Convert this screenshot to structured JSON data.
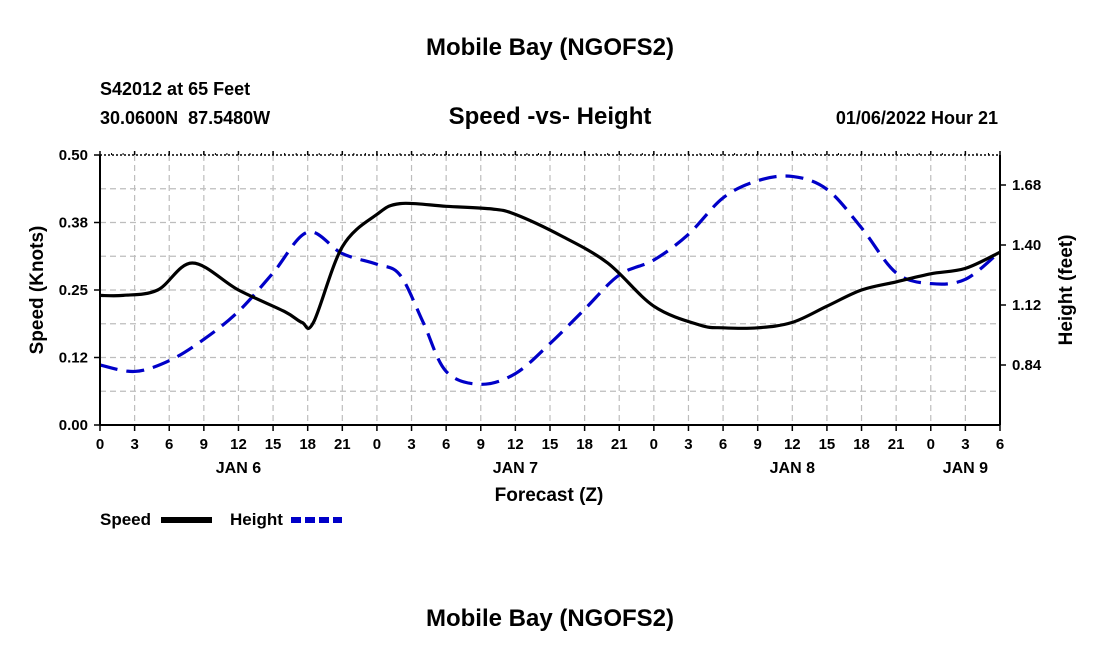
{
  "page": {
    "title": "Mobile Bay (NGOFS2)",
    "bottom_title": "Mobile Bay (NGOFS2)"
  },
  "header": {
    "station_line": "S42012 at 65 Feet",
    "coords": "30.0600N  87.5480W",
    "plot_title": "Speed -vs- Height",
    "timestamp": "01/06/2022 Hour 21"
  },
  "legend": {
    "speed_label": "Speed",
    "height_label": "Height"
  },
  "chart_data": {
    "type": "line",
    "xlabel": "Forecast (Z)",
    "ylabel_left": "Speed (Knots)",
    "ylabel_right": "Height (feet)",
    "x_unit": "hours",
    "x_range": [
      0,
      78
    ],
    "x_ticks": [
      "0",
      "3",
      "6",
      "9",
      "12",
      "15",
      "18",
      "21",
      "0",
      "3",
      "6",
      "9",
      "12",
      "15",
      "18",
      "21",
      "0",
      "3",
      "6",
      "9",
      "12",
      "15",
      "18",
      "21",
      "0",
      "3",
      "6"
    ],
    "day_labels": [
      {
        "label": "JAN 6",
        "hour": 12
      },
      {
        "label": "JAN 7",
        "hour": 36
      },
      {
        "label": "JAN 8",
        "hour": 60
      },
      {
        "label": "JAN 9",
        "hour": 75
      }
    ],
    "ylim_left": [
      0,
      0.5
    ],
    "yticks_left": [
      "0.00",
      "0.12",
      "0.25",
      "0.38",
      "0.50"
    ],
    "ylim_right": [
      0.56,
      1.82
    ],
    "yticks_right": [
      "0.84",
      "1.12",
      "1.40",
      "1.68"
    ],
    "grid": true,
    "legend_position": "bottom-left",
    "series": [
      {
        "name": "Speed",
        "axis": "left",
        "color": "#000000",
        "style": "solid",
        "x": [
          0,
          2,
          5,
          8,
          12,
          16,
          17.5,
          18.5,
          21,
          24,
          26,
          30,
          34,
          36,
          40,
          44,
          48,
          52,
          54,
          57,
          60,
          63,
          66,
          69,
          72,
          75,
          78
        ],
        "y": [
          0.24,
          0.24,
          0.25,
          0.3,
          0.25,
          0.21,
          0.19,
          0.19,
          0.33,
          0.39,
          0.41,
          0.405,
          0.4,
          0.39,
          0.35,
          0.3,
          0.22,
          0.185,
          0.18,
          0.18,
          0.19,
          0.22,
          0.25,
          0.265,
          0.28,
          0.29,
          0.32
        ]
      },
      {
        "name": "Height",
        "axis": "right",
        "color": "#0000c8",
        "style": "dashed",
        "x": [
          0,
          3,
          6,
          9,
          12,
          15,
          18,
          21,
          24,
          26,
          28,
          30,
          33,
          36,
          39,
          42,
          45,
          48,
          51,
          54,
          57,
          60,
          63,
          66,
          69,
          72,
          75,
          78
        ],
        "y": [
          0.84,
          0.81,
          0.86,
          0.96,
          1.09,
          1.27,
          1.46,
          1.36,
          1.31,
          1.26,
          1.04,
          0.81,
          0.75,
          0.8,
          0.94,
          1.1,
          1.26,
          1.33,
          1.45,
          1.62,
          1.7,
          1.72,
          1.66,
          1.48,
          1.27,
          1.22,
          1.24,
          1.37
        ]
      }
    ]
  }
}
